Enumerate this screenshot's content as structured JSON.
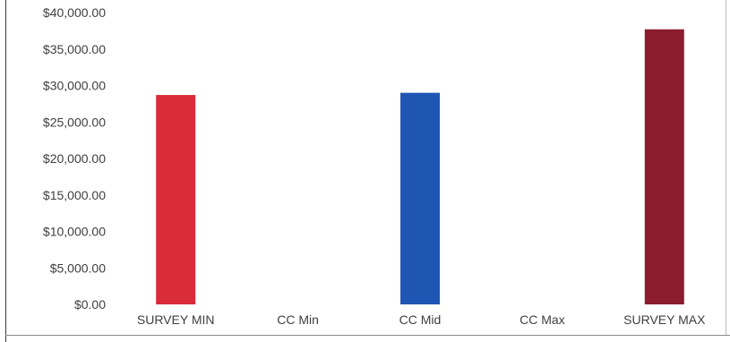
{
  "chart_data": {
    "type": "bar",
    "categories": [
      "SURVEY MIN",
      "CC Min",
      "CC Mid",
      "CC Max",
      "SURVEY MAX"
    ],
    "values": [
      28700,
      null,
      29000,
      null,
      37700
    ],
    "colors": [
      "#d92b3a",
      null,
      "#1f55b3",
      null,
      "#8b1d2e"
    ],
    "ylim": [
      0,
      40000
    ],
    "y_tick_values": [
      0,
      5000,
      10000,
      15000,
      20000,
      25000,
      30000,
      35000,
      40000
    ],
    "y_tick_labels": [
      "$0.00",
      "$5,000.00",
      "$10,000.00",
      "$15,000.00",
      "$20,000.00",
      "$25,000.00",
      "$30,000.00",
      "$35,000.00",
      "$40,000.00"
    ],
    "grid": false,
    "legend": "none",
    "title": "",
    "xlabel": "",
    "ylabel": ""
  }
}
